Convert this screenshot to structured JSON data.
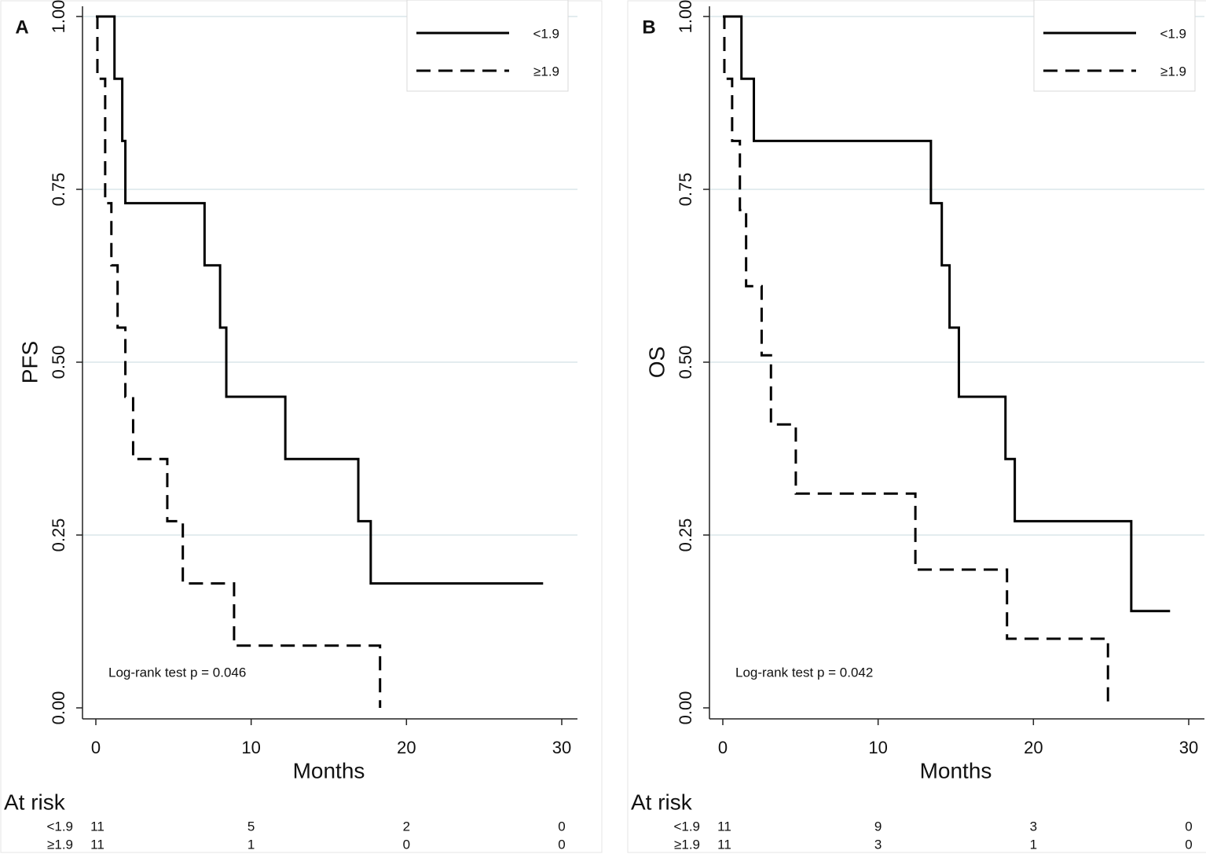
{
  "chart_data": [
    {
      "type": "step",
      "panel": "A",
      "ylabel": "PFS",
      "xlabel": "Months",
      "xlim": [
        0,
        30
      ],
      "ylim": [
        0,
        1
      ],
      "xticks": [
        0,
        10,
        20,
        30
      ],
      "yticks": [
        {
          "value": 0,
          "label": "0.00"
        },
        {
          "value": 0.25,
          "label": "0.25"
        },
        {
          "value": 0.5,
          "label": "0.50"
        },
        {
          "value": 0.75,
          "label": "0.75"
        },
        {
          "value": 1,
          "label": "1.00"
        }
      ],
      "grid": true,
      "legend": "top-right",
      "series": [
        {
          "name": "<1.9",
          "color": "#000000",
          "style": "solid",
          "x": [
            0,
            1.2,
            1.7,
            1.9,
            7.0,
            8.0,
            8.4,
            12.2,
            16.9,
            17.7,
            28.8
          ],
          "values": [
            1,
            0.91,
            0.82,
            0.73,
            0.64,
            0.55,
            0.45,
            0.36,
            0.27,
            0.18,
            0.18
          ]
        },
        {
          "name": "≥1.9",
          "color": "#000000",
          "style": "dashed",
          "x": [
            0,
            0.1,
            0.6,
            1.0,
            1.4,
            1.9,
            2.4,
            4.6,
            5.6,
            8.9,
            18.3
          ],
          "values": [
            1,
            0.91,
            0.73,
            0.64,
            0.55,
            0.45,
            0.36,
            0.27,
            0.18,
            0.09,
            0
          ]
        }
      ],
      "annotation": "Log-rank test p = 0.046",
      "at_risk": {
        "title": "At risk",
        "rows": [
          {
            "name": "<1.9",
            "values": [
              11,
              5,
              2,
              0
            ]
          },
          {
            "name": "≥1.9",
            "values": [
              11,
              1,
              0,
              0
            ]
          }
        ]
      }
    },
    {
      "type": "step",
      "panel": "B",
      "ylabel": "OS",
      "xlabel": "Months",
      "xlim": [
        0,
        30
      ],
      "ylim": [
        0,
        1
      ],
      "xticks": [
        0,
        10,
        20,
        30
      ],
      "yticks": [
        {
          "value": 0,
          "label": "0.00"
        },
        {
          "value": 0.25,
          "label": "0.25"
        },
        {
          "value": 0.5,
          "label": "0.50"
        },
        {
          "value": 0.75,
          "label": "0.75"
        },
        {
          "value": 1,
          "label": "1.00"
        }
      ],
      "grid": true,
      "legend": "top-right",
      "series": [
        {
          "name": "<1.9",
          "color": "#000000",
          "style": "solid",
          "x": [
            0,
            1.2,
            2.0,
            13.4,
            14.1,
            14.6,
            15.2,
            18.2,
            18.8,
            26.3,
            28.8
          ],
          "values": [
            1,
            0.91,
            0.82,
            0.73,
            0.64,
            0.55,
            0.45,
            0.36,
            0.27,
            0.14,
            0.14
          ]
        },
        {
          "name": "≥1.9",
          "color": "#000000",
          "style": "dashed",
          "x": [
            0,
            0.1,
            0.6,
            1.1,
            1.5,
            2.5,
            3.1,
            4.7,
            12.4,
            18.3,
            24.8
          ],
          "values": [
            1,
            0.91,
            0.82,
            0.72,
            0.61,
            0.51,
            0.41,
            0.31,
            0.2,
            0.1,
            0
          ]
        }
      ],
      "annotation": "Log-rank test p = 0.042",
      "at_risk": {
        "title": "At risk",
        "rows": [
          {
            "name": "<1.9",
            "values": [
              11,
              9,
              3,
              0
            ]
          },
          {
            "name": "≥1.9",
            "values": [
              11,
              3,
              1,
              0
            ]
          }
        ]
      }
    }
  ]
}
